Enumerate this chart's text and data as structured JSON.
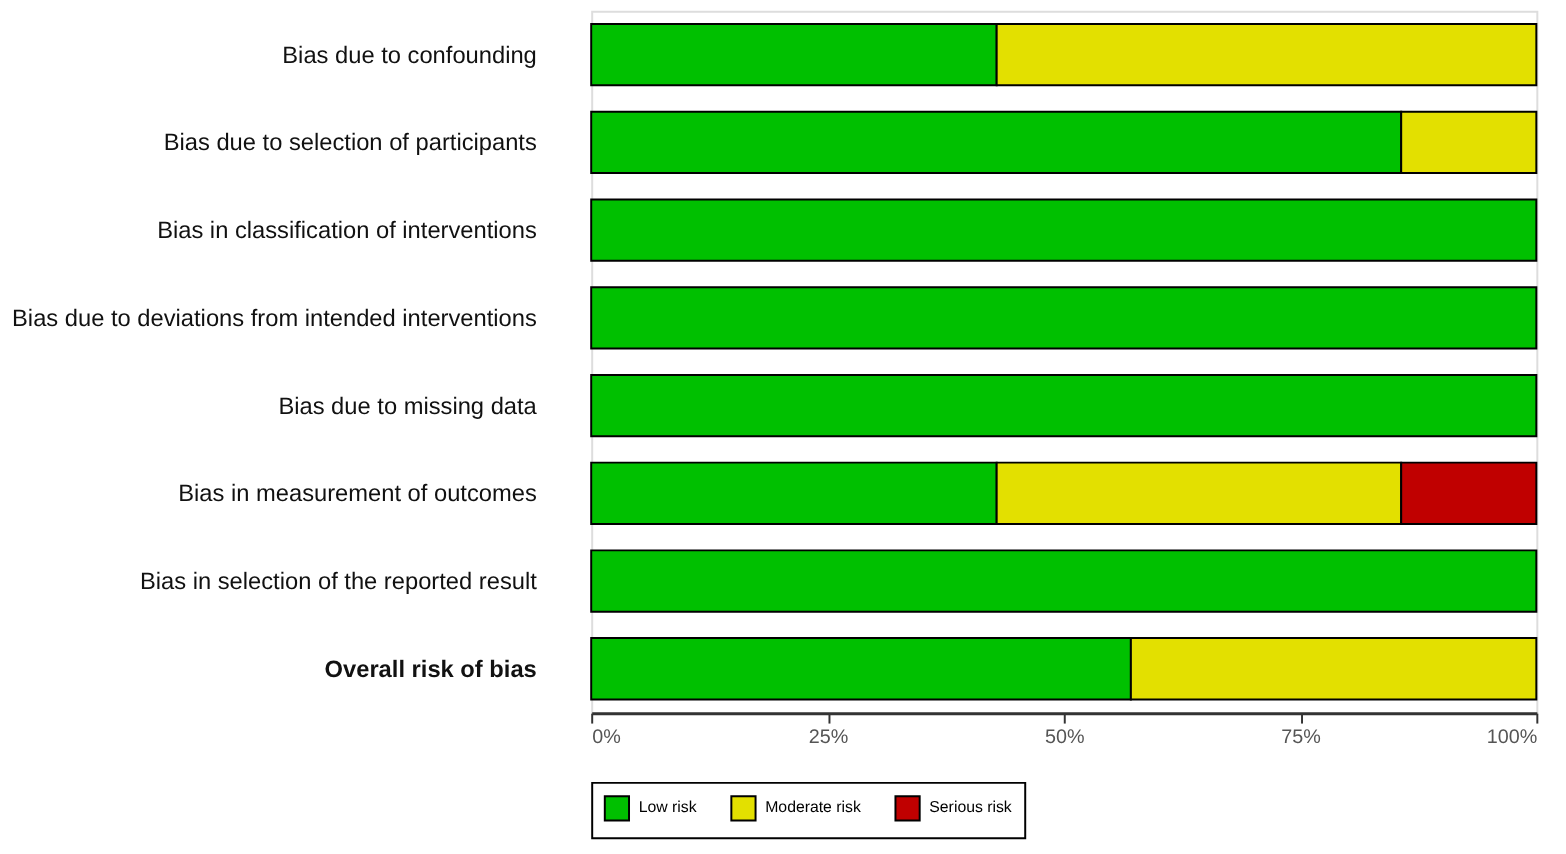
{
  "chart_data": {
    "type": "bar",
    "orientation": "horizontal",
    "stacked": true,
    "categories": [
      "Bias due to confounding",
      "Bias due to selection of participants",
      "Bias in classification of interventions",
      "Bias due to deviations from intended interventions",
      "Bias due to missing data",
      "Bias in measurement of outcomes",
      "Bias in selection of the reported result",
      "Overall risk of bias"
    ],
    "series": [
      {
        "name": "Low risk",
        "color": "#00c000",
        "values": [
          42.9,
          85.7,
          100,
          100,
          100,
          42.9,
          100,
          57.1
        ]
      },
      {
        "name": "Moderate risk",
        "color": "#e3e000",
        "values": [
          57.1,
          14.3,
          0,
          0,
          0,
          42.8,
          0,
          42.9
        ]
      },
      {
        "name": "Serious risk",
        "color": "#c00000",
        "values": [
          0,
          0,
          0,
          0,
          0,
          14.3,
          0,
          0
        ]
      }
    ],
    "xlim": [
      0,
      100
    ],
    "xticks": [
      {
        "value": 0,
        "label": "0%"
      },
      {
        "value": 25,
        "label": "25%"
      },
      {
        "value": 50,
        "label": "50%"
      },
      {
        "value": 75,
        "label": "75%"
      },
      {
        "value": 100,
        "label": "100%"
      }
    ],
    "grid": false,
    "legend": "bottom"
  }
}
